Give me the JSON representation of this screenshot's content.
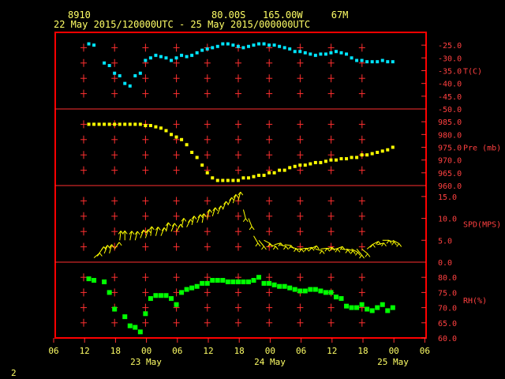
{
  "header": {
    "station": "8910",
    "location": "80.00S   165.00W     67M",
    "period": "22 May 2015/120000UTC - 25 May 2015/000000UTC"
  },
  "footer": {
    "page_number": "2"
  },
  "colors": {
    "frame": "#ff0000",
    "grid": "#ff3030",
    "labels": "#ff4040",
    "time_axis": "#ffff66",
    "temperature": "#00e5ff",
    "pressure": "#ffff00",
    "wind": "#ffff00",
    "rh": "#00ff00"
  },
  "chart_data": [
    {
      "type": "scatter",
      "name": "T(C)",
      "ylim": [
        -50,
        -20
      ],
      "ticks": [
        -25.0,
        -30.0,
        -35.0,
        -40.0,
        -45.0,
        -50.0
      ],
      "x": [
        13,
        14,
        16,
        17,
        18,
        19,
        20,
        21,
        22,
        23,
        24,
        25,
        26,
        27,
        28,
        29,
        30,
        31,
        32,
        33,
        34,
        35,
        36,
        37,
        38,
        39,
        40,
        41,
        42,
        43,
        44,
        45,
        46,
        47,
        48,
        49,
        50,
        51,
        52,
        53,
        54,
        55,
        56,
        57,
        58,
        59,
        60,
        61,
        62,
        63,
        64,
        65,
        66,
        67,
        68,
        69,
        70,
        71,
        72
      ],
      "y": [
        -24.5,
        -25,
        -32,
        -33,
        -36,
        -37,
        -40,
        -41,
        -37,
        -36,
        -31,
        -30,
        -29,
        -29.5,
        -30,
        -31,
        -30,
        -29,
        -29.5,
        -29,
        -28,
        -27,
        -26.5,
        -26,
        -25.5,
        -24.5,
        -24.5,
        -25,
        -25.5,
        -26,
        -25.5,
        -25,
        -24.5,
        -24.5,
        -25,
        -25,
        -25.5,
        -26,
        -26.5,
        -27.5,
        -27.5,
        -28,
        -28.5,
        -29,
        -28.5,
        -28.5,
        -28,
        -27.5,
        -28,
        -28.5,
        -30,
        -31,
        -31,
        -31.5,
        -31.5,
        -31.5,
        -31,
        -31.5,
        -31.5
      ]
    },
    {
      "type": "scatter",
      "name": "Pre (mb)",
      "ylim": [
        960,
        990
      ],
      "ticks": [
        985.0,
        980.0,
        975.0,
        970.0,
        965.0,
        960.0
      ],
      "x": [
        13,
        14,
        15,
        16,
        17,
        18,
        19,
        20,
        21,
        22,
        23,
        24,
        25,
        26,
        27,
        28,
        29,
        30,
        31,
        32,
        33,
        34,
        35,
        36,
        37,
        38,
        39,
        40,
        41,
        42,
        43,
        44,
        45,
        46,
        47,
        48,
        49,
        50,
        51,
        52,
        53,
        54,
        55,
        56,
        57,
        58,
        59,
        60,
        61,
        62,
        63,
        64,
        65,
        66,
        67,
        68,
        69,
        70,
        71,
        72
      ],
      "y": [
        984,
        984,
        984,
        984,
        984,
        984,
        984,
        984,
        984,
        984,
        984,
        983.5,
        983.5,
        983,
        982.5,
        981.5,
        980,
        979,
        978,
        976,
        973,
        971,
        968,
        965,
        963,
        962,
        962,
        962,
        962,
        962,
        963,
        963,
        963.5,
        964,
        964,
        965,
        965,
        966,
        966,
        967,
        967.5,
        968,
        968,
        968.5,
        969,
        969,
        969.5,
        970,
        970,
        970.5,
        970.5,
        971,
        971,
        972,
        972,
        972.5,
        973,
        973.5,
        974,
        975
      ]
    },
    {
      "type": "scatter",
      "name": "SPD(MPS)",
      "ylim": [
        0,
        15
      ],
      "ticks": [
        15.0,
        10.0,
        5.0,
        0.0
      ],
      "x": [
        14,
        15,
        16,
        17,
        18,
        19,
        20,
        21,
        22,
        23,
        24,
        25,
        26,
        27,
        28,
        29,
        30,
        31,
        32,
        33,
        34,
        35,
        36,
        37,
        38,
        39,
        40,
        41,
        42,
        43,
        44,
        45,
        46,
        47,
        48,
        49,
        50,
        51,
        52,
        53,
        54,
        55,
        56,
        57,
        58,
        59,
        60,
        61,
        62,
        63,
        64,
        65,
        66,
        67,
        68,
        69,
        70,
        71,
        72
      ],
      "y": [
        1,
        2,
        2,
        2,
        3,
        5,
        5,
        5,
        5,
        5.5,
        5.5,
        6,
        6,
        6,
        7,
        7,
        7,
        8,
        8,
        8.5,
        9,
        9,
        10,
        10.5,
        11,
        12,
        13,
        13.5,
        14,
        12,
        10,
        6,
        5,
        5,
        4,
        4,
        4,
        4,
        3.5,
        3,
        3,
        3,
        3,
        3,
        3,
        3,
        3,
        3,
        3,
        3,
        3,
        3,
        3,
        3,
        4,
        4,
        5,
        5,
        5
      ],
      "dir": [
        60,
        45,
        30,
        20,
        45,
        10,
        0,
        15,
        20,
        30,
        25,
        10,
        20,
        30,
        20,
        30,
        40,
        20,
        35,
        20,
        30,
        15,
        20,
        25,
        30,
        30,
        35,
        25,
        20,
        160,
        150,
        140,
        130,
        110,
        100,
        80,
        100,
        95,
        100,
        90,
        85,
        80,
        70,
        100,
        85,
        80,
        90,
        75,
        95,
        100,
        110,
        130,
        120,
        60,
        70,
        80,
        90,
        100,
        110
      ]
    },
    {
      "type": "scatter",
      "name": "RH(%)",
      "ylim": [
        60,
        85
      ],
      "ticks": [
        80.0,
        75.0,
        70.0,
        65.0,
        60.0
      ],
      "x": [
        13,
        14,
        16,
        17,
        18,
        20,
        21,
        22,
        23,
        24,
        25,
        26,
        27,
        28,
        29,
        30,
        31,
        32,
        33,
        34,
        35,
        36,
        37,
        38,
        39,
        40,
        41,
        42,
        43,
        44,
        45,
        46,
        47,
        48,
        49,
        50,
        51,
        52,
        53,
        54,
        55,
        56,
        57,
        58,
        59,
        60,
        61,
        62,
        63,
        64,
        65,
        66,
        67,
        68,
        69,
        70,
        71,
        72
      ],
      "y": [
        79.5,
        79,
        78.5,
        75,
        69.5,
        67,
        64,
        63.5,
        62,
        68,
        73,
        74,
        74,
        74,
        73,
        71,
        75,
        76,
        76.5,
        77,
        78,
        78,
        79,
        79,
        79,
        78.5,
        78.5,
        78.5,
        78.5,
        78.5,
        79,
        80,
        78,
        78,
        77.5,
        77,
        77,
        76.5,
        76,
        75.5,
        75.5,
        76,
        76,
        75.5,
        75,
        75,
        73.5,
        73,
        70.5,
        70,
        70,
        71,
        69.5,
        69,
        70,
        71,
        69,
        70
      ]
    }
  ],
  "time_axis": {
    "hour_labels": [
      "06",
      "12",
      "18",
      "00",
      "06",
      "12",
      "18",
      "00",
      "06",
      "12",
      "18",
      "00",
      "06"
    ],
    "date_labels": [
      "23 May",
      "24 May",
      "25 May"
    ]
  }
}
